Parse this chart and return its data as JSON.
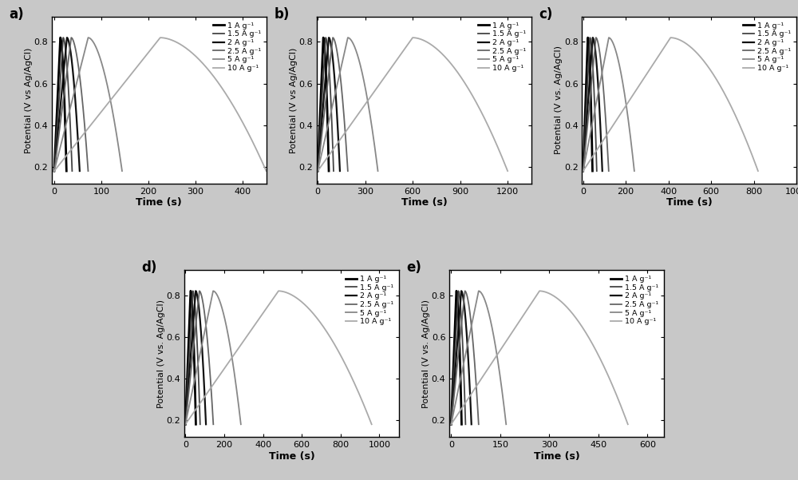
{
  "subplots": [
    {
      "label": "a)",
      "xlabel": "Time (s)",
      "ylabel": "Potential (V vs Ag/AgCl)",
      "xlim": [
        -5,
        450
      ],
      "ylim": [
        0.12,
        0.92
      ],
      "xticks": [
        0,
        100,
        200,
        300,
        400
      ],
      "yticks": [
        0.2,
        0.4,
        0.6,
        0.8
      ],
      "charge_times": [
        13,
        19,
        27,
        36,
        72,
        225
      ],
      "discharge_times": [
        13,
        19,
        27,
        36,
        72,
        225
      ],
      "discharge_offsets": [
        13,
        19,
        27,
        36,
        72,
        225
      ]
    },
    {
      "label": "b)",
      "xlabel": "Time (s)",
      "ylabel": "Potential (V vs Ag/AgCl)",
      "xlim": [
        -5,
        1350
      ],
      "ylim": [
        0.12,
        0.92
      ],
      "xticks": [
        0,
        300,
        600,
        900,
        1200
      ],
      "yticks": [
        0.2,
        0.4,
        0.6,
        0.8
      ],
      "charge_times": [
        35,
        50,
        70,
        95,
        190,
        600
      ],
      "discharge_times": [
        35,
        50,
        70,
        95,
        190,
        600
      ],
      "discharge_offsets": [
        35,
        50,
        70,
        95,
        190,
        600
      ]
    },
    {
      "label": "c)",
      "xlabel": "Time (s)",
      "ylabel": "Potential (V vs. Ag/AgCl)",
      "xlim": [
        -5,
        1000
      ],
      "ylim": [
        0.12,
        0.92
      ],
      "xticks": [
        0,
        200,
        400,
        600,
        800,
        1000
      ],
      "yticks": [
        0.2,
        0.4,
        0.6,
        0.8
      ],
      "charge_times": [
        22,
        32,
        45,
        60,
        120,
        410
      ],
      "discharge_times": [
        22,
        32,
        45,
        60,
        120,
        410
      ],
      "discharge_offsets": [
        22,
        32,
        45,
        60,
        120,
        410
      ]
    },
    {
      "label": "d)",
      "xlabel": "Time (s)",
      "ylabel": "Potential (V vs. Ag/AgCl)",
      "xlim": [
        -5,
        1100
      ],
      "ylim": [
        0.12,
        0.92
      ],
      "xticks": [
        0,
        200,
        400,
        600,
        800,
        1000
      ],
      "yticks": [
        0.2,
        0.4,
        0.6,
        0.8
      ],
      "charge_times": [
        27,
        38,
        53,
        72,
        143,
        480
      ],
      "discharge_times": [
        27,
        38,
        53,
        72,
        143,
        480
      ],
      "discharge_offsets": [
        27,
        38,
        53,
        72,
        143,
        480
      ]
    },
    {
      "label": "e)",
      "xlabel": "Time (s)",
      "ylabel": "Potential (V vs. Ag/AgCl)",
      "xlim": [
        -5,
        650
      ],
      "ylim": [
        0.12,
        0.92
      ],
      "xticks": [
        0,
        150,
        300,
        450,
        600
      ],
      "yticks": [
        0.2,
        0.4,
        0.6,
        0.8
      ],
      "charge_times": [
        16,
        22,
        31,
        42,
        84,
        270
      ],
      "discharge_times": [
        16,
        22,
        31,
        42,
        84,
        270
      ],
      "discharge_offsets": [
        16,
        22,
        31,
        42,
        84,
        270
      ]
    }
  ],
  "legend_labels": [
    "1 A g⁻¹",
    "1.5 A g⁻¹",
    "2 A g⁻¹",
    "2.5 A g⁻¹",
    "5 A g⁻¹",
    "10 A g⁻¹"
  ],
  "line_colors": [
    "#000000",
    "#444444",
    "#111111",
    "#666666",
    "#888888",
    "#aaaaaa"
  ],
  "line_widths": [
    2.0,
    1.3,
    1.6,
    1.3,
    1.3,
    1.3
  ],
  "v_min": 0.18,
  "v_max": 0.82,
  "fig_bg": "#c8c8c8",
  "panel_bg": "#ffffff",
  "discharge_curvature": 1.8
}
